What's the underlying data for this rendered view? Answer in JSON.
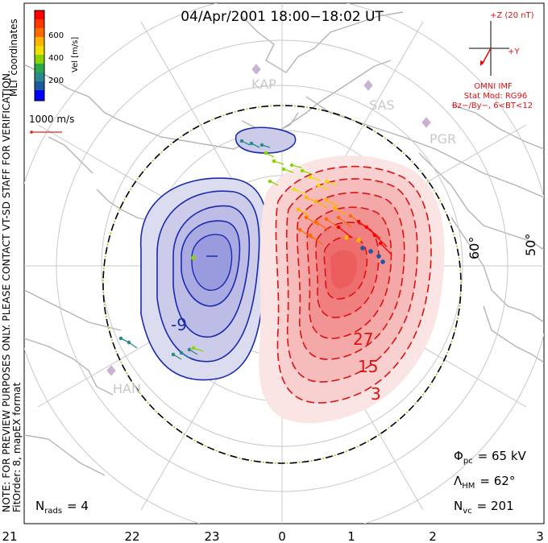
{
  "title": "04/Apr/2001 18:00−18:02 UT",
  "coordinates_label": "MLT coordinates",
  "preview_note": "NOTE: FOR PREVIEW PURPOSES ONLY. PLEASE CONTACT VT-SD STAFF FOR VERIFICATION.",
  "fit_note": "FitOrder: 8, mapEX format",
  "velocity_scale": {
    "label": "Vel [m/s]",
    "ticks": [
      "600",
      "400",
      "200"
    ],
    "colors": [
      "#ff0000",
      "#ff6a00",
      "#ffb400",
      "#f0e000",
      "#8ad400",
      "#2aa84a",
      "#2a8a8a",
      "#1e5aa0",
      "#0000ff"
    ]
  },
  "reference_vector": {
    "label": "1000 m/s",
    "color": "#e02020"
  },
  "imf": {
    "z_label": "+Z (20 nT)",
    "y_label": "+Y",
    "source": "OMNI IMF",
    "model": "Stat Mod: RG96",
    "condition": "Bz−/By−, 6<BT<12",
    "color": "#dd1111"
  },
  "stations": [
    "KAP",
    "SAS",
    "PGR",
    "HAN"
  ],
  "latitude_labels": [
    "60°",
    "50°"
  ],
  "potential_contours": {
    "positive_labels": [
      "27",
      "15",
      "3"
    ],
    "negative_labels": [
      "-9"
    ],
    "positive_color": "#dd1111",
    "negative_color": "#1a2aaa"
  },
  "stats": {
    "phi_symbol": "Φ",
    "phi_sub": "pc",
    "phi_value": "= 65 kV",
    "lambda_symbol": "Λ",
    "lambda_sub": "HM",
    "lambda_value": "= 62°",
    "nvc_symbol": "N",
    "nvc_sub": "vc",
    "nvc_value": "= 201",
    "nrads_symbol": "N",
    "nrads_sub": "rads",
    "nrads_value": "= 4"
  },
  "mlt_labels": [
    "21",
    "22",
    "23",
    "0",
    "1",
    "2",
    "3"
  ]
}
